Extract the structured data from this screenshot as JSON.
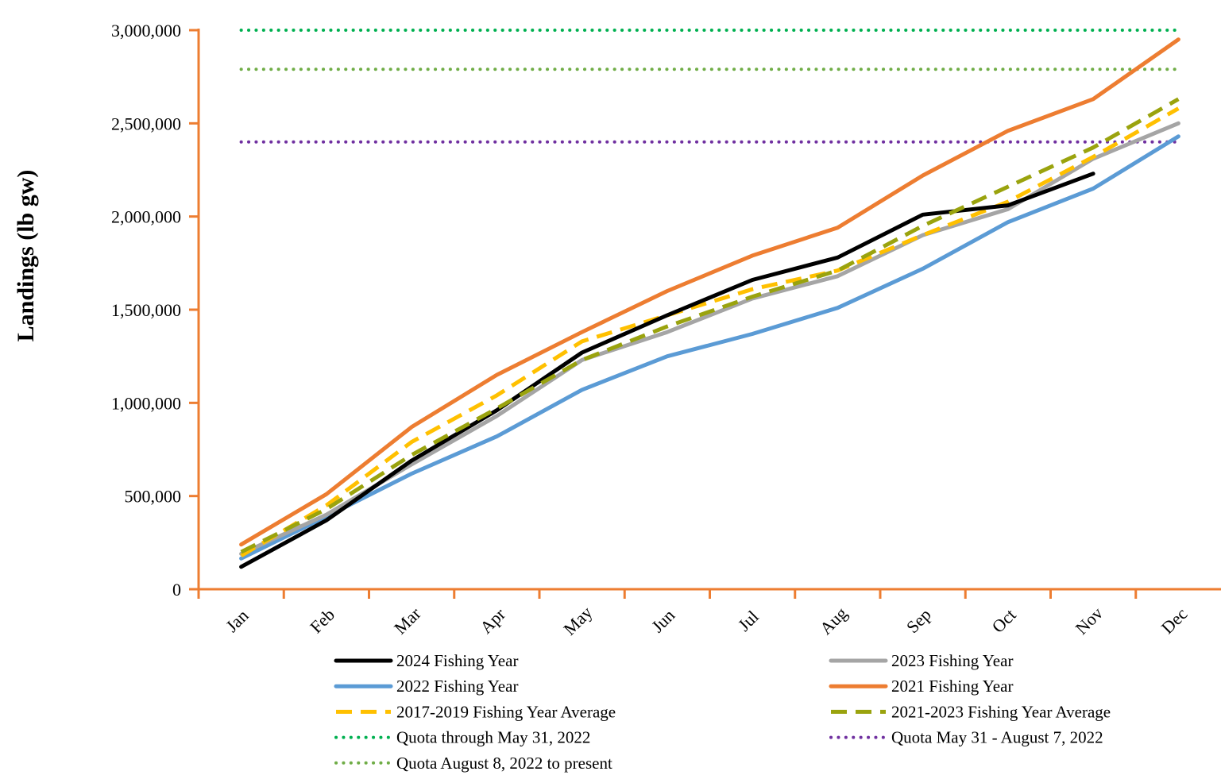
{
  "chart_data": {
    "type": "line",
    "ylabel": "Landings (lb gw)",
    "xlabel": "",
    "categories": [
      "Jan",
      "Feb",
      "Mar",
      "Apr",
      "May",
      "Jun",
      "Jul",
      "Aug",
      "Sep",
      "Oct",
      "Nov",
      "Dec"
    ],
    "ylim": [
      0,
      3000000
    ],
    "y_ticks": [
      0,
      500000,
      1000000,
      1500000,
      2000000,
      2500000,
      3000000
    ],
    "y_tick_labels": [
      "0",
      "500,000",
      "1,000,000",
      "1,500,000",
      "2,000,000",
      "2,500,000",
      "3,000,000"
    ],
    "grid": false,
    "legend_position": "bottom",
    "axis_color": "#ED7D31",
    "series": [
      {
        "name": "2024 Fishing Year",
        "color": "#000000",
        "style": "solid",
        "values": [
          120000,
          370000,
          690000,
          960000,
          1270000,
          1470000,
          1660000,
          1780000,
          2010000,
          2060000,
          2230000,
          null
        ]
      },
      {
        "name": "2023 Fishing Year",
        "color": "#A5A5A5",
        "style": "solid",
        "values": [
          190000,
          400000,
          670000,
          930000,
          1230000,
          1380000,
          1560000,
          1680000,
          1900000,
          2040000,
          2310000,
          2500000
        ]
      },
      {
        "name": "2022 Fishing Year",
        "color": "#5B9BD5",
        "style": "solid",
        "values": [
          165000,
          390000,
          620000,
          820000,
          1070000,
          1250000,
          1370000,
          1510000,
          1720000,
          1970000,
          2150000,
          2430000
        ]
      },
      {
        "name": "2021 Fishing Year",
        "color": "#ED7D31",
        "style": "solid",
        "values": [
          240000,
          510000,
          870000,
          1150000,
          1380000,
          1600000,
          1790000,
          1940000,
          2220000,
          2460000,
          2630000,
          2950000
        ]
      },
      {
        "name": "2017-2019 Fishing Year Average",
        "color": "#FFC000",
        "style": "dashed",
        "values": [
          180000,
          450000,
          790000,
          1040000,
          1330000,
          1470000,
          1610000,
          1710000,
          1900000,
          2080000,
          2320000,
          2580000
        ]
      },
      {
        "name": "2021-2023 Fishing Year Average",
        "color": "#9AA30E",
        "style": "dashed",
        "values": [
          200000,
          430000,
          720000,
          970000,
          1230000,
          1410000,
          1570000,
          1710000,
          1950000,
          2160000,
          2370000,
          2630000
        ]
      },
      {
        "name": "Quota through May 31, 2022",
        "color": "#00B050",
        "style": "dotted",
        "values": [
          3000000,
          3000000,
          3000000,
          3000000,
          3000000,
          3000000,
          3000000,
          3000000,
          3000000,
          3000000,
          3000000,
          3000000
        ]
      },
      {
        "name": "Quota May 31 - August 7, 2022",
        "color": "#7030A0",
        "style": "dotted",
        "values": [
          2400000,
          2400000,
          2400000,
          2400000,
          2400000,
          2400000,
          2400000,
          2400000,
          2400000,
          2400000,
          2400000,
          2400000
        ]
      },
      {
        "name": "Quota August 8, 2022 to present",
        "color": "#70AD47",
        "style": "dotted",
        "values": [
          2790000,
          2790000,
          2790000,
          2790000,
          2790000,
          2790000,
          2790000,
          2790000,
          2790000,
          2790000,
          2790000,
          2790000
        ]
      }
    ]
  }
}
